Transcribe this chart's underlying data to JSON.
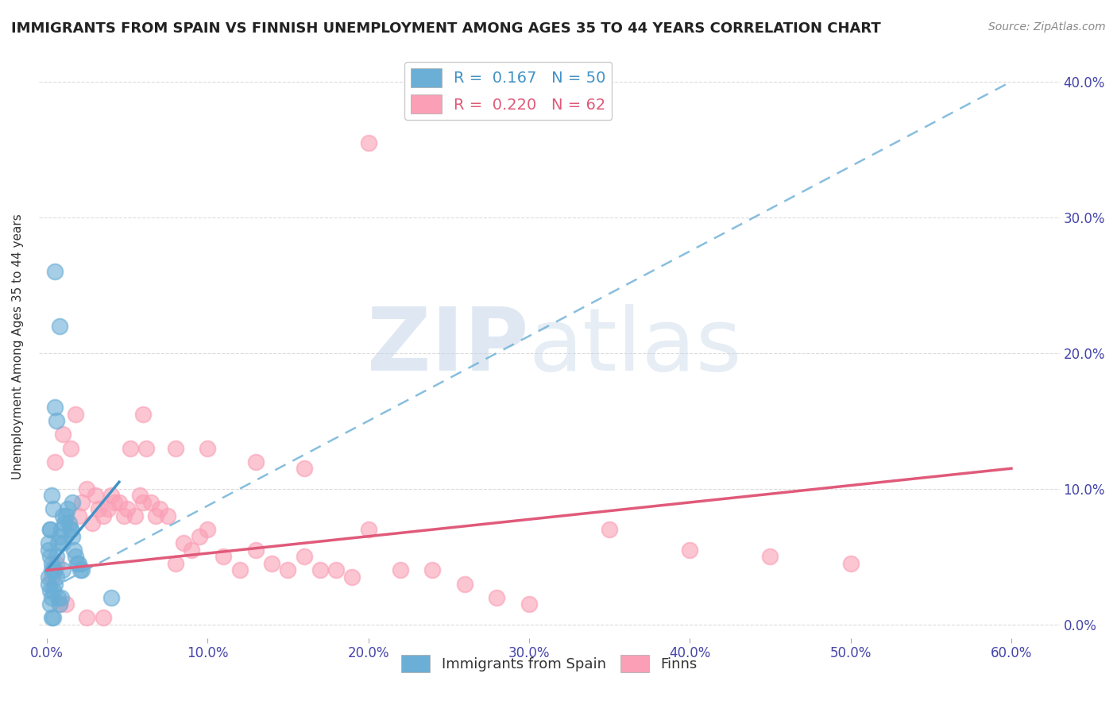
{
  "title": "IMMIGRANTS FROM SPAIN VS FINNISH UNEMPLOYMENT AMONG AGES 35 TO 44 YEARS CORRELATION CHART",
  "source": "Source: ZipAtlas.com",
  "xlabel_ticks": [
    "0.0%",
    "10.0%",
    "20.0%",
    "30.0%",
    "40.0%",
    "50.0%",
    "60.0%"
  ],
  "xlabel_vals": [
    0.0,
    0.1,
    0.2,
    0.3,
    0.4,
    0.5,
    0.6
  ],
  "ylabel_ticks": [
    "0.0%",
    "10.0%",
    "20.0%",
    "30.0%",
    "40.0%"
  ],
  "ylabel_vals": [
    0.0,
    0.1,
    0.2,
    0.3,
    0.4
  ],
  "ylabel_label": "Unemployment Among Ages 35 to 44 years",
  "xlim": [
    -0.005,
    0.63
  ],
  "ylim": [
    -0.01,
    0.42
  ],
  "blue_R": 0.167,
  "blue_N": 50,
  "pink_R": 0.22,
  "pink_N": 62,
  "blue_color": "#6baed6",
  "pink_color": "#fa9fb5",
  "blue_trend_color": "#4292c6",
  "pink_trend_color": "#e05a7a",
  "watermark_zip": "ZIP",
  "watermark_atlas": "atlas",
  "watermark_color_zip": "#b8cce4",
  "watermark_color_atlas": "#c8d8e8",
  "legend_label_blue": "Immigrants from Spain",
  "legend_label_pink": "Finns",
  "blue_scatter_x": [
    0.005,
    0.008,
    0.005,
    0.006,
    0.003,
    0.004,
    0.002,
    0.002,
    0.001,
    0.001,
    0.002,
    0.003,
    0.003,
    0.004,
    0.005,
    0.006,
    0.007,
    0.008,
    0.009,
    0.01,
    0.011,
    0.012,
    0.013,
    0.014,
    0.015,
    0.016,
    0.017,
    0.018,
    0.019,
    0.02,
    0.021,
    0.022,
    0.001,
    0.001,
    0.002,
    0.003,
    0.004,
    0.005,
    0.006,
    0.007,
    0.008,
    0.009,
    0.003,
    0.004,
    0.016,
    0.015,
    0.01,
    0.01,
    0.04,
    0.002
  ],
  "blue_scatter_y": [
    0.26,
    0.22,
    0.16,
    0.15,
    0.095,
    0.085,
    0.07,
    0.07,
    0.06,
    0.055,
    0.05,
    0.045,
    0.04,
    0.04,
    0.04,
    0.05,
    0.06,
    0.065,
    0.07,
    0.08,
    0.075,
    0.08,
    0.085,
    0.075,
    0.07,
    0.065,
    0.055,
    0.05,
    0.045,
    0.045,
    0.04,
    0.04,
    0.035,
    0.03,
    0.025,
    0.02,
    0.025,
    0.03,
    0.035,
    0.02,
    0.015,
    0.02,
    0.005,
    0.005,
    0.09,
    0.07,
    0.06,
    0.04,
    0.02,
    0.015
  ],
  "pink_scatter_x": [
    0.005,
    0.01,
    0.015,
    0.018,
    0.02,
    0.022,
    0.025,
    0.028,
    0.03,
    0.032,
    0.035,
    0.038,
    0.04,
    0.042,
    0.045,
    0.048,
    0.05,
    0.052,
    0.055,
    0.058,
    0.06,
    0.062,
    0.065,
    0.068,
    0.07,
    0.075,
    0.08,
    0.085,
    0.09,
    0.095,
    0.1,
    0.11,
    0.12,
    0.13,
    0.14,
    0.15,
    0.16,
    0.17,
    0.18,
    0.19,
    0.2,
    0.22,
    0.24,
    0.26,
    0.28,
    0.3,
    0.35,
    0.4,
    0.45,
    0.5,
    0.003,
    0.006,
    0.008,
    0.012,
    0.025,
    0.035,
    0.06,
    0.08,
    0.1,
    0.13,
    0.16,
    0.2
  ],
  "pink_scatter_y": [
    0.12,
    0.14,
    0.13,
    0.155,
    0.08,
    0.09,
    0.1,
    0.075,
    0.095,
    0.085,
    0.08,
    0.085,
    0.095,
    0.09,
    0.09,
    0.08,
    0.085,
    0.13,
    0.08,
    0.095,
    0.09,
    0.13,
    0.09,
    0.08,
    0.085,
    0.08,
    0.045,
    0.06,
    0.055,
    0.065,
    0.07,
    0.05,
    0.04,
    0.055,
    0.045,
    0.04,
    0.05,
    0.04,
    0.04,
    0.035,
    0.07,
    0.04,
    0.04,
    0.03,
    0.02,
    0.015,
    0.07,
    0.055,
    0.05,
    0.045,
    0.035,
    0.045,
    0.015,
    0.015,
    0.005,
    0.005,
    0.155,
    0.13,
    0.13,
    0.12,
    0.115,
    0.355
  ],
  "blue_trend_x": [
    0.0,
    0.045
  ],
  "blue_trend_y": [
    0.04,
    0.105
  ],
  "pink_trend_x": [
    0.0,
    0.6
  ],
  "pink_trend_y": [
    0.04,
    0.115
  ],
  "blue_dashed_trend_x": [
    0.0,
    0.6
  ],
  "blue_dashed_trend_y": [
    0.025,
    0.4
  ]
}
